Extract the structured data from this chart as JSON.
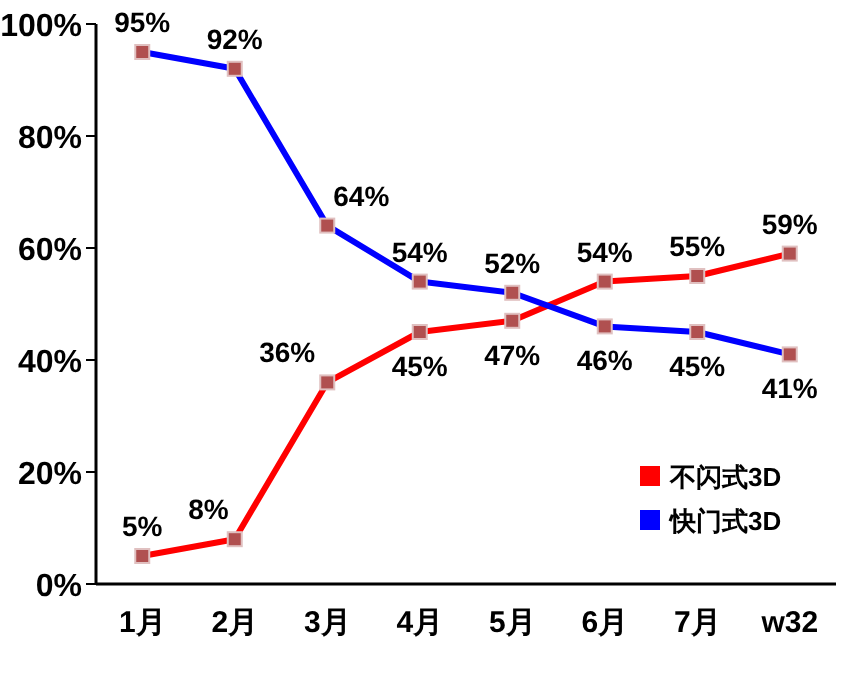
{
  "chart_data": {
    "type": "line",
    "categories": [
      "1月",
      "2月",
      "3月",
      "4月",
      "5月",
      "6月",
      "7月",
      "w32"
    ],
    "ylim": [
      0,
      100
    ],
    "yticks": [
      {
        "value": 0,
        "label": "0%"
      },
      {
        "value": 20,
        "label": "20%"
      },
      {
        "value": 40,
        "label": "40%"
      },
      {
        "value": 60,
        "label": "60%"
      },
      {
        "value": 80,
        "label": "80%"
      },
      {
        "value": 100,
        "label": "100%"
      }
    ],
    "series": [
      {
        "name": "不闪式3D",
        "color": "#ff0000",
        "values": [
          5,
          8,
          36,
          45,
          47,
          54,
          55,
          59
        ],
        "value_labels": [
          "5%",
          "8%",
          "36%",
          "45%",
          "47%",
          "54%",
          "55%",
          "59%"
        ]
      },
      {
        "name": "快门式3D",
        "color": "#0000ff",
        "values": [
          95,
          92,
          64,
          54,
          52,
          46,
          45,
          41
        ],
        "value_labels": [
          "95%",
          "92%",
          "64%",
          "54%",
          "52%",
          "46%",
          "45%",
          "41%"
        ]
      }
    ],
    "marker": "square",
    "line_style": "solid",
    "legend": "bottom right",
    "grid": false
  }
}
